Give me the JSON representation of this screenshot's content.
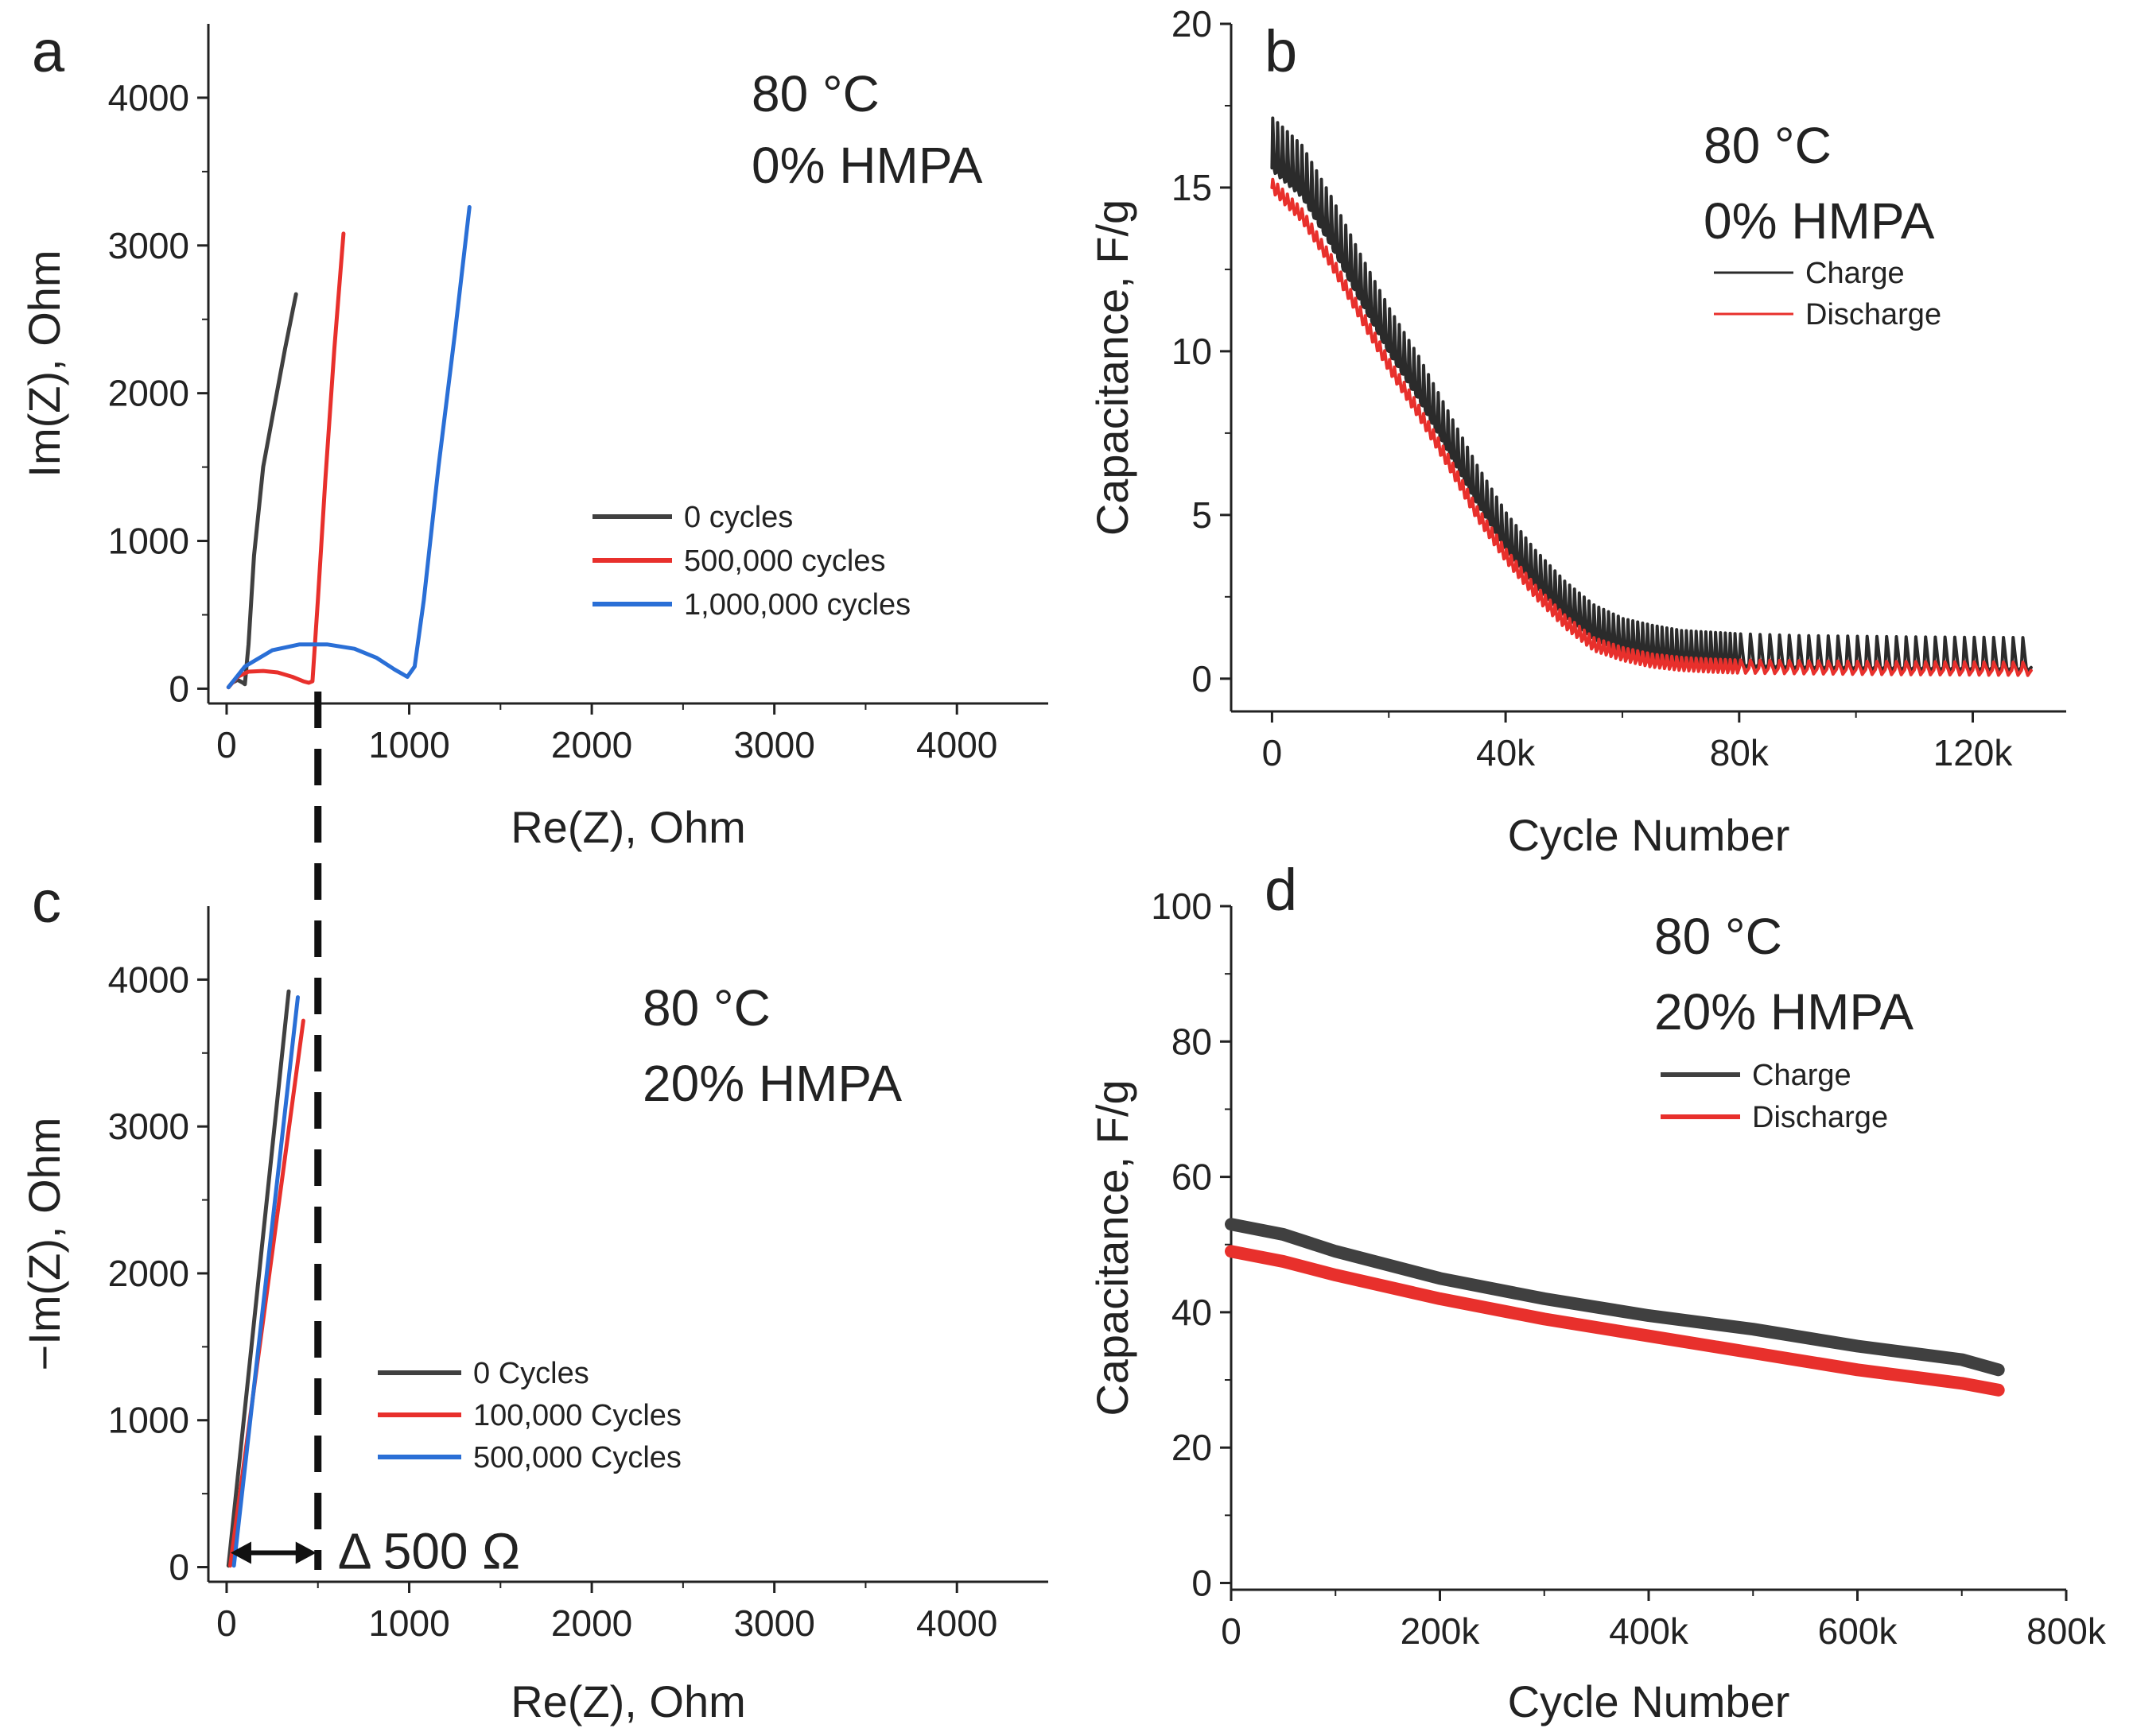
{
  "chart_data": [
    {
      "panel": "a",
      "type": "line",
      "xlabel": "Re(Z), Ohm",
      "ylabel": "Im(Z), Ohm",
      "xlim": [
        -100,
        4500
      ],
      "ylim": [
        -100,
        4500
      ],
      "xticks": [
        0,
        1000,
        2000,
        3000,
        4000
      ],
      "yticks": [
        0,
        1000,
        2000,
        3000,
        4000
      ],
      "annotation": [
        "80 °C",
        "0% HMPA"
      ],
      "legend_position": "middle-right",
      "series": [
        {
          "name": "0 cycles",
          "color": "#404040",
          "x": [
            10,
            30,
            60,
            90,
            100,
            120,
            150,
            200,
            260,
            320,
            380
          ],
          "y": [
            10,
            40,
            60,
            40,
            30,
            300,
            900,
            1500,
            1900,
            2300,
            2670
          ]
        },
        {
          "name": "500,000 cycles",
          "color": "#e8302c",
          "x": [
            10,
            60,
            120,
            200,
            280,
            360,
            420,
            450,
            470,
            500,
            540,
            590,
            640
          ],
          "y": [
            10,
            80,
            115,
            120,
            110,
            80,
            50,
            40,
            50,
            600,
            1400,
            2300,
            3080
          ]
        },
        {
          "name": "1,000,000 cycles",
          "color": "#2a6fd6",
          "x": [
            10,
            100,
            250,
            400,
            550,
            700,
            820,
            920,
            990,
            1030,
            1080,
            1160,
            1250,
            1330
          ],
          "y": [
            10,
            150,
            260,
            300,
            300,
            270,
            210,
            130,
            80,
            150,
            600,
            1500,
            2400,
            3260
          ]
        }
      ]
    },
    {
      "panel": "b",
      "type": "line",
      "xlabel": "Cycle Number",
      "ylabel": "Capacitance, F/g",
      "xlim": [
        -7000,
        136000
      ],
      "ylim": [
        -1,
        20
      ],
      "xticks": [
        0,
        40000,
        80000,
        120000
      ],
      "xtick_labels": [
        "0",
        "40k",
        "80k",
        "120k"
      ],
      "yticks": [
        0,
        5,
        10,
        15,
        20
      ],
      "annotation": [
        "80 °C",
        "0% HMPA"
      ],
      "legend_position": "top-right",
      "series": [
        {
          "name": "Charge",
          "color": "#2b2b2b",
          "x": [
            0,
            5000,
            10000,
            15000,
            20000,
            25000,
            30000,
            35000,
            40000,
            45000,
            50000,
            55000,
            60000,
            65000,
            70000,
            75000,
            80000,
            90000,
            100000,
            110000,
            120000,
            130000
          ],
          "y": [
            15.6,
            14.8,
            13.3,
            11.6,
            10.0,
            8.6,
            7.0,
            5.4,
            4.0,
            2.9,
            2.0,
            1.3,
            0.9,
            0.7,
            0.55,
            0.5,
            0.45,
            0.4,
            0.38,
            0.36,
            0.35,
            0.34
          ]
        },
        {
          "name": "Discharge",
          "color": "#e8302c",
          "x": [
            0,
            5000,
            10000,
            15000,
            20000,
            25000,
            30000,
            35000,
            40000,
            45000,
            50000,
            55000,
            60000,
            65000,
            70000,
            75000,
            80000,
            90000,
            100000,
            110000,
            120000,
            130000
          ],
          "y": [
            15.0,
            14.1,
            12.7,
            11.1,
            9.5,
            8.1,
            6.6,
            5.0,
            3.7,
            2.6,
            1.7,
            1.0,
            0.7,
            0.5,
            0.4,
            0.35,
            0.32,
            0.3,
            0.28,
            0.27,
            0.26,
            0.25
          ]
        }
      ]
    },
    {
      "panel": "c",
      "type": "line",
      "xlabel": "Re(Z), Ohm",
      "ylabel": "−Im(Z), Ohm",
      "xlim": [
        -100,
        4500
      ],
      "ylim": [
        -100,
        4500
      ],
      "xticks": [
        0,
        1000,
        2000,
        3000,
        4000
      ],
      "yticks": [
        0,
        1000,
        2000,
        3000,
        4000
      ],
      "annotation": [
        "80 °C",
        "20% HMPA"
      ],
      "marker_text": "Δ 500 Ω",
      "marker_x": 500,
      "legend_position": "bottom-middle",
      "series": [
        {
          "name": "0 Cycles",
          "color": "#404040",
          "x": [
            10,
            340
          ],
          "y": [
            10,
            3920
          ]
        },
        {
          "name": "100,000 Cycles",
          "color": "#e8302c",
          "x": [
            20,
            420
          ],
          "y": [
            10,
            3720
          ]
        },
        {
          "name": "500,000 Cycles",
          "color": "#2a6fd6",
          "x": [
            40,
            390
          ],
          "y": [
            10,
            3880
          ]
        }
      ]
    },
    {
      "panel": "d",
      "type": "line",
      "xlabel": "Cycle Number",
      "ylabel": "Capacitance, F/g",
      "xlim": [
        0,
        800000
      ],
      "ylim": [
        -1,
        100
      ],
      "xticks": [
        0,
        200000,
        400000,
        600000,
        800000
      ],
      "xtick_labels": [
        "0",
        "200k",
        "400k",
        "600k",
        "800k"
      ],
      "yticks": [
        0,
        20,
        40,
        60,
        80,
        100
      ],
      "annotation": [
        "80 °C",
        "20% HMPA"
      ],
      "legend_position": "upper-middle",
      "series": [
        {
          "name": "Charge",
          "color": "#404040",
          "x": [
            0,
            50000,
            100000,
            200000,
            300000,
            400000,
            500000,
            600000,
            700000,
            735000
          ],
          "y": [
            53,
            51.5,
            49,
            45,
            42,
            39.5,
            37.5,
            35,
            33,
            31.5
          ]
        },
        {
          "name": "Discharge",
          "color": "#e8302c",
          "x": [
            0,
            50000,
            100000,
            200000,
            300000,
            400000,
            500000,
            600000,
            700000,
            735000
          ],
          "y": [
            49,
            47.5,
            45.5,
            42,
            39,
            36.5,
            34,
            31.5,
            29.5,
            28.5
          ]
        }
      ]
    }
  ]
}
